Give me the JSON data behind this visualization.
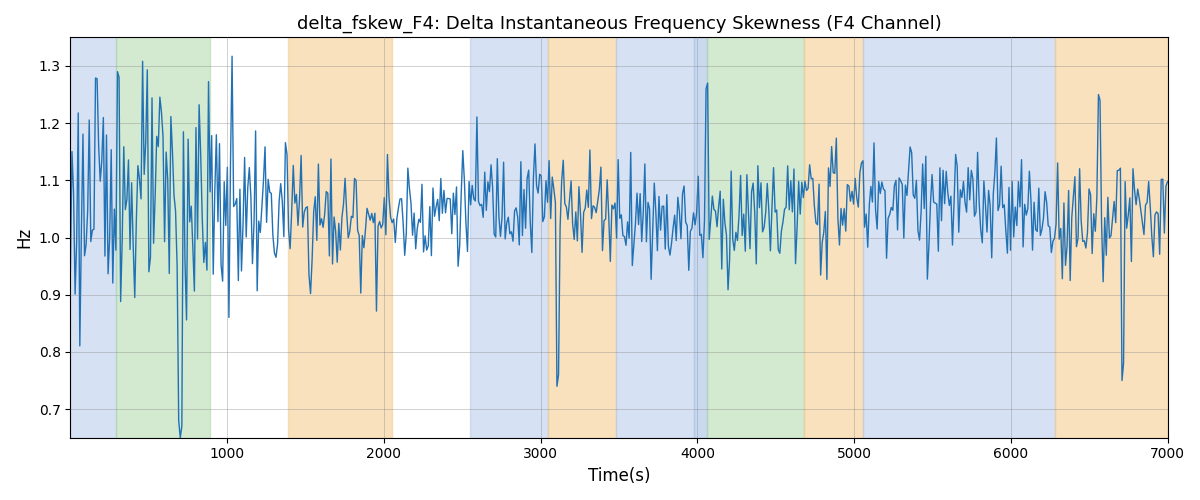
{
  "title": "delta_fskew_F4: Delta Instantaneous Frequency Skewness (F4 Channel)",
  "xlabel": "Time(s)",
  "ylabel": "Hz",
  "xlim": [
    0,
    7000
  ],
  "ylim": [
    0.65,
    1.35
  ],
  "yticks": [
    0.7,
    0.8,
    0.9,
    1.0,
    1.1,
    1.2,
    1.3
  ],
  "xticks": [
    1000,
    2000,
    3000,
    4000,
    5000,
    6000,
    7000
  ],
  "line_color": "#2171b5",
  "line_width": 1.0,
  "figsize": [
    12.0,
    5.0
  ],
  "dpi": 100,
  "bg_regions": [
    {
      "xmin": 0,
      "xmax": 290,
      "color": "#aec6e8",
      "alpha": 0.5
    },
    {
      "xmin": 290,
      "xmax": 890,
      "color": "#a8d5a2",
      "alpha": 0.5
    },
    {
      "xmin": 1390,
      "xmax": 2050,
      "color": "#f5c98a",
      "alpha": 0.55
    },
    {
      "xmin": 2550,
      "xmax": 3050,
      "color": "#aec6e8",
      "alpha": 0.5
    },
    {
      "xmin": 3050,
      "xmax": 3480,
      "color": "#f5c98a",
      "alpha": 0.55
    },
    {
      "xmin": 3480,
      "xmax": 3980,
      "color": "#aec6e8",
      "alpha": 0.5
    },
    {
      "xmin": 3980,
      "xmax": 4060,
      "color": "#aec6e8",
      "alpha": 0.65
    },
    {
      "xmin": 4060,
      "xmax": 4680,
      "color": "#a8d5a2",
      "alpha": 0.5
    },
    {
      "xmin": 4680,
      "xmax": 5060,
      "color": "#f5c98a",
      "alpha": 0.55
    },
    {
      "xmin": 5060,
      "xmax": 6280,
      "color": "#aec6e8",
      "alpha": 0.5
    },
    {
      "xmin": 6280,
      "xmax": 7000,
      "color": "#f5c98a",
      "alpha": 0.55
    }
  ],
  "seed": 42,
  "n_points": 700
}
